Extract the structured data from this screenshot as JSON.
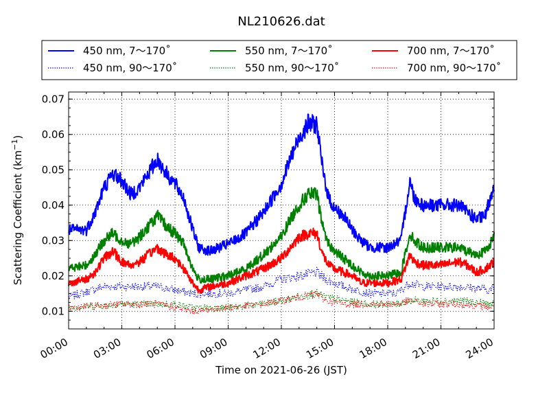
{
  "chart_data": {
    "type": "line",
    "title": "NL210626.dat",
    "xlabel": "Time on 2021-06-26 (JST)",
    "ylabel_main": "Scattering Coefficient (km",
    "ylabel_sup": "−1",
    "ylabel_tail": ")",
    "xlim": [
      "2021-06-26 00:00",
      "2021-06-27 00:00"
    ],
    "ylim": [
      0.005,
      0.072
    ],
    "x_ticks": [
      "00:00",
      "03:00",
      "06:00",
      "09:00",
      "12:00",
      "15:00",
      "18:00",
      "21:00",
      "24:00"
    ],
    "y_ticks": [
      "0.01",
      "0.02",
      "0.03",
      "0.04",
      "0.05",
      "0.06",
      "0.07"
    ],
    "grid": true,
    "legend_placement": "top, above plot",
    "series": [
      {
        "name": "450 nm, 7～170˚",
        "color": "#0000ff",
        "style": "solid",
        "points": [
          [
            "00:00",
            0.033
          ],
          [
            "01:00",
            0.033
          ],
          [
            "01:30",
            0.038
          ],
          [
            "02:00",
            0.045
          ],
          [
            "02:30",
            0.049
          ],
          [
            "03:00",
            0.047
          ],
          [
            "03:30",
            0.043
          ],
          [
            "04:00",
            0.045
          ],
          [
            "04:30",
            0.049
          ],
          [
            "05:00",
            0.053
          ],
          [
            "05:30",
            0.049
          ],
          [
            "06:00",
            0.046
          ],
          [
            "06:30",
            0.042
          ],
          [
            "07:00",
            0.033
          ],
          [
            "07:20",
            0.028
          ],
          [
            "08:00",
            0.027
          ],
          [
            "09:00",
            0.029
          ],
          [
            "10:00",
            0.032
          ],
          [
            "11:00",
            0.038
          ],
          [
            "12:00",
            0.046
          ],
          [
            "12:30",
            0.053
          ],
          [
            "13:00",
            0.059
          ],
          [
            "13:30",
            0.063
          ],
          [
            "14:00",
            0.063
          ],
          [
            "14:20",
            0.05
          ],
          [
            "14:40",
            0.042
          ],
          [
            "15:00",
            0.039
          ],
          [
            "15:30",
            0.037
          ],
          [
            "16:00",
            0.033
          ],
          [
            "16:30",
            0.03
          ],
          [
            "17:00",
            0.028
          ],
          [
            "18:00",
            0.028
          ],
          [
            "18:45",
            0.03
          ],
          [
            "19:15",
            0.047
          ],
          [
            "19:30",
            0.042
          ],
          [
            "20:00",
            0.04
          ],
          [
            "21:00",
            0.04
          ],
          [
            "22:00",
            0.04
          ],
          [
            "22:30",
            0.038
          ],
          [
            "23:00",
            0.036
          ],
          [
            "23:30",
            0.037
          ],
          [
            "24:00",
            0.046
          ]
        ]
      },
      {
        "name": "450 nm, 90～170˚",
        "color": "#0000ff",
        "style": "dotted",
        "points": [
          [
            "00:00",
            0.014
          ],
          [
            "02:00",
            0.017
          ],
          [
            "03:00",
            0.017
          ],
          [
            "05:00",
            0.017
          ],
          [
            "06:00",
            0.016
          ],
          [
            "07:00",
            0.015
          ],
          [
            "09:00",
            0.015
          ],
          [
            "11:00",
            0.017
          ],
          [
            "12:00",
            0.019
          ],
          [
            "13:00",
            0.02
          ],
          [
            "14:00",
            0.021
          ],
          [
            "14:30",
            0.019
          ],
          [
            "15:30",
            0.017
          ],
          [
            "17:00",
            0.015
          ],
          [
            "18:30",
            0.015
          ],
          [
            "19:15",
            0.018
          ],
          [
            "20:00",
            0.017
          ],
          [
            "22:00",
            0.017
          ],
          [
            "24:00",
            0.016
          ]
        ]
      },
      {
        "name": "550 nm, 7～170˚",
        "color": "#008000",
        "style": "solid",
        "points": [
          [
            "00:00",
            0.022
          ],
          [
            "01:00",
            0.023
          ],
          [
            "01:30",
            0.026
          ],
          [
            "02:00",
            0.03
          ],
          [
            "02:30",
            0.032
          ],
          [
            "03:00",
            0.03
          ],
          [
            "03:30",
            0.029
          ],
          [
            "04:00",
            0.031
          ],
          [
            "04:30",
            0.034
          ],
          [
            "05:00",
            0.037
          ],
          [
            "05:30",
            0.034
          ],
          [
            "06:00",
            0.032
          ],
          [
            "06:30",
            0.029
          ],
          [
            "07:00",
            0.022
          ],
          [
            "07:20",
            0.019
          ],
          [
            "08:00",
            0.019
          ],
          [
            "09:00",
            0.02
          ],
          [
            "10:00",
            0.022
          ],
          [
            "11:00",
            0.026
          ],
          [
            "12:00",
            0.031
          ],
          [
            "12:30",
            0.036
          ],
          [
            "13:00",
            0.04
          ],
          [
            "13:30",
            0.043
          ],
          [
            "14:00",
            0.043
          ],
          [
            "14:20",
            0.034
          ],
          [
            "14:40",
            0.029
          ],
          [
            "15:00",
            0.027
          ],
          [
            "15:30",
            0.025
          ],
          [
            "16:00",
            0.023
          ],
          [
            "16:30",
            0.021
          ],
          [
            "17:00",
            0.02
          ],
          [
            "18:00",
            0.02
          ],
          [
            "18:45",
            0.021
          ],
          [
            "19:15",
            0.032
          ],
          [
            "19:30",
            0.03
          ],
          [
            "20:00",
            0.028
          ],
          [
            "21:00",
            0.028
          ],
          [
            "22:00",
            0.028
          ],
          [
            "22:30",
            0.027
          ],
          [
            "23:00",
            0.026
          ],
          [
            "23:30",
            0.027
          ],
          [
            "24:00",
            0.031
          ]
        ]
      },
      {
        "name": "550 nm, 90～170˚",
        "color": "#008000",
        "style": "dotted",
        "points": [
          [
            "00:00",
            0.011
          ],
          [
            "03:00",
            0.012
          ],
          [
            "05:00",
            0.012
          ],
          [
            "06:00",
            0.012
          ],
          [
            "07:00",
            0.011
          ],
          [
            "09:00",
            0.011
          ],
          [
            "11:00",
            0.012
          ],
          [
            "12:00",
            0.013
          ],
          [
            "13:00",
            0.014
          ],
          [
            "14:00",
            0.015
          ],
          [
            "14:30",
            0.014
          ],
          [
            "15:30",
            0.013
          ],
          [
            "17:00",
            0.012
          ],
          [
            "18:30",
            0.012
          ],
          [
            "19:15",
            0.013
          ],
          [
            "20:00",
            0.013
          ],
          [
            "22:00",
            0.013
          ],
          [
            "24:00",
            0.012
          ]
        ]
      },
      {
        "name": "700 nm, 7～170˚",
        "color": "#ff0000",
        "style": "solid",
        "points": [
          [
            "00:00",
            0.018
          ],
          [
            "01:00",
            0.019
          ],
          [
            "01:30",
            0.021
          ],
          [
            "02:00",
            0.025
          ],
          [
            "02:30",
            0.027
          ],
          [
            "03:00",
            0.024
          ],
          [
            "03:30",
            0.023
          ],
          [
            "04:00",
            0.024
          ],
          [
            "04:30",
            0.026
          ],
          [
            "05:00",
            0.028
          ],
          [
            "05:30",
            0.026
          ],
          [
            "06:00",
            0.025
          ],
          [
            "06:30",
            0.022
          ],
          [
            "07:00",
            0.018
          ],
          [
            "07:20",
            0.016
          ],
          [
            "08:00",
            0.017
          ],
          [
            "09:00",
            0.018
          ],
          [
            "10:00",
            0.02
          ],
          [
            "11:00",
            0.022
          ],
          [
            "12:00",
            0.025
          ],
          [
            "12:30",
            0.028
          ],
          [
            "13:00",
            0.031
          ],
          [
            "13:30",
            0.032
          ],
          [
            "14:00",
            0.032
          ],
          [
            "14:20",
            0.026
          ],
          [
            "14:40",
            0.023
          ],
          [
            "15:00",
            0.022
          ],
          [
            "15:30",
            0.021
          ],
          [
            "16:00",
            0.02
          ],
          [
            "16:30",
            0.018
          ],
          [
            "17:00",
            0.018
          ],
          [
            "18:00",
            0.018
          ],
          [
            "18:45",
            0.019
          ],
          [
            "19:15",
            0.026
          ],
          [
            "19:30",
            0.024
          ],
          [
            "20:00",
            0.023
          ],
          [
            "21:00",
            0.023
          ],
          [
            "22:00",
            0.024
          ],
          [
            "22:30",
            0.023
          ],
          [
            "23:00",
            0.021
          ],
          [
            "23:30",
            0.022
          ],
          [
            "24:00",
            0.024
          ]
        ]
      },
      {
        "name": "700 nm, 90～170˚",
        "color": "#ff0000",
        "style": "dotted",
        "points": [
          [
            "00:00",
            0.011
          ],
          [
            "03:00",
            0.012
          ],
          [
            "05:00",
            0.012
          ],
          [
            "06:00",
            0.011
          ],
          [
            "07:00",
            0.01
          ],
          [
            "09:00",
            0.011
          ],
          [
            "11:00",
            0.012
          ],
          [
            "12:00",
            0.013
          ],
          [
            "13:00",
            0.014
          ],
          [
            "14:00",
            0.015
          ],
          [
            "14:30",
            0.013
          ],
          [
            "15:30",
            0.012
          ],
          [
            "17:00",
            0.012
          ],
          [
            "18:30",
            0.012
          ],
          [
            "19:15",
            0.013
          ],
          [
            "20:00",
            0.012
          ],
          [
            "22:00",
            0.012
          ],
          [
            "24:00",
            0.011
          ]
        ]
      }
    ]
  }
}
